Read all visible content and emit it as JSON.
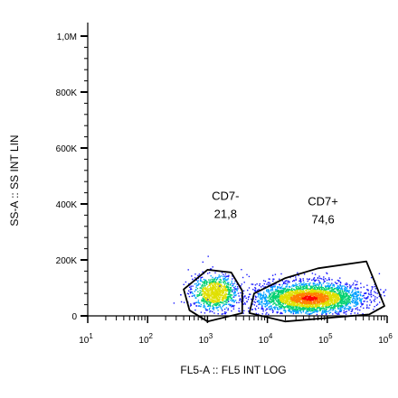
{
  "chart_data": {
    "type": "scatter",
    "title": "",
    "xlabel": "FL5-A :: FL5 INT LOG",
    "ylabel": "SS-A :: SS INT LIN",
    "x_scale": "log",
    "xlim": [
      10,
      1000000
    ],
    "ylim": [
      0,
      1000000
    ],
    "x_ticks": [
      {
        "value": 10,
        "base": "10",
        "exp": "1"
      },
      {
        "value": 100,
        "base": "10",
        "exp": "2"
      },
      {
        "value": 1000,
        "base": "10",
        "exp": "3"
      },
      {
        "value": 10000,
        "base": "10",
        "exp": "4"
      },
      {
        "value": 100000,
        "base": "10",
        "exp": "5"
      },
      {
        "value": 1000000,
        "base": "10",
        "exp": "6"
      }
    ],
    "y_ticks": [
      {
        "value": 0,
        "label": "0"
      },
      {
        "value": 200000,
        "label": "200K"
      },
      {
        "value": 400000,
        "label": "400K"
      },
      {
        "value": 600000,
        "label": "600K"
      },
      {
        "value": 800000,
        "label": "800K"
      },
      {
        "value": 1000000,
        "label": "1,0M"
      }
    ],
    "gates": [
      {
        "name": "CD7-",
        "percent": "21,8",
        "label_pos": [
          2000,
          415000
        ],
        "polygon": [
          [
            1000,
            165000
          ],
          [
            2500,
            155000
          ],
          [
            3800,
            90000
          ],
          [
            3800,
            10000
          ],
          [
            1000,
            -20000
          ],
          [
            500,
            20000
          ],
          [
            400,
            95000
          ]
        ]
      },
      {
        "name": "CD7+",
        "percent": "74,6",
        "label_pos": [
          85000,
          395000
        ],
        "polygon": [
          [
            20000,
            135000
          ],
          [
            70000,
            170000
          ],
          [
            450000,
            195000
          ],
          [
            900000,
            35000
          ],
          [
            500000,
            5000
          ],
          [
            20000,
            -20000
          ],
          [
            5000,
            10000
          ],
          [
            6000,
            80000
          ]
        ]
      }
    ],
    "populations": [
      {
        "name": "CD7-",
        "x_center": 1300,
        "y_center": 85000,
        "count": 900
      },
      {
        "name": "CD7+",
        "x_center": 50000,
        "y_center": 65000,
        "count": 3000
      }
    ],
    "density_colors": [
      "#1a1aff",
      "#00a0ff",
      "#00d070",
      "#e0e000",
      "#ff8000",
      "#ff0000"
    ]
  }
}
